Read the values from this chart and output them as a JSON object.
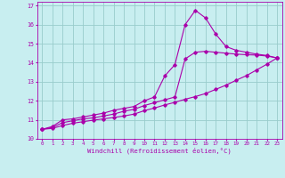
{
  "title": "",
  "xlabel": "Windchill (Refroidissement éolien,°C)",
  "ylabel": "",
  "xlim": [
    -0.5,
    23.5
  ],
  "ylim": [
    10,
    17.2
  ],
  "yticks": [
    10,
    11,
    12,
    13,
    14,
    15,
    16,
    17
  ],
  "xticks": [
    0,
    1,
    2,
    3,
    4,
    5,
    6,
    7,
    8,
    9,
    10,
    11,
    12,
    13,
    14,
    15,
    16,
    17,
    18,
    19,
    20,
    21,
    22,
    23
  ],
  "bg_color": "#c8eef0",
  "line_color": "#aa00aa",
  "grid_color": "#99cccc",
  "line1_x": [
    0,
    1,
    2,
    3,
    4,
    5,
    6,
    7,
    8,
    9,
    10,
    11,
    12,
    13,
    14,
    15,
    16,
    17,
    18,
    19,
    20,
    21,
    22,
    23
  ],
  "line1_y": [
    10.5,
    10.65,
    11.0,
    11.05,
    11.15,
    11.25,
    11.35,
    11.5,
    11.6,
    11.7,
    12.0,
    12.2,
    13.3,
    13.9,
    16.0,
    16.75,
    16.35,
    15.5,
    14.85,
    14.65,
    14.55,
    14.45,
    14.38,
    14.25
  ],
  "line2_x": [
    0,
    1,
    2,
    3,
    4,
    5,
    6,
    7,
    8,
    9,
    10,
    11,
    12,
    13,
    14,
    15,
    16,
    17,
    18,
    19,
    20,
    21,
    22,
    23
  ],
  "line2_y": [
    10.5,
    10.6,
    10.85,
    10.95,
    11.05,
    11.1,
    11.2,
    11.3,
    11.45,
    11.55,
    11.75,
    11.9,
    12.05,
    12.2,
    14.2,
    14.55,
    14.6,
    14.55,
    14.5,
    14.45,
    14.42,
    14.4,
    14.35,
    14.25
  ],
  "line3_x": [
    0,
    1,
    2,
    3,
    4,
    5,
    6,
    7,
    8,
    9,
    10,
    11,
    12,
    13,
    14,
    15,
    16,
    17,
    18,
    19,
    20,
    21,
    22,
    23
  ],
  "line3_y": [
    10.5,
    10.55,
    10.7,
    10.82,
    10.9,
    10.98,
    11.05,
    11.12,
    11.2,
    11.3,
    11.48,
    11.62,
    11.78,
    11.92,
    12.08,
    12.22,
    12.38,
    12.6,
    12.82,
    13.08,
    13.32,
    13.62,
    13.92,
    14.25
  ]
}
